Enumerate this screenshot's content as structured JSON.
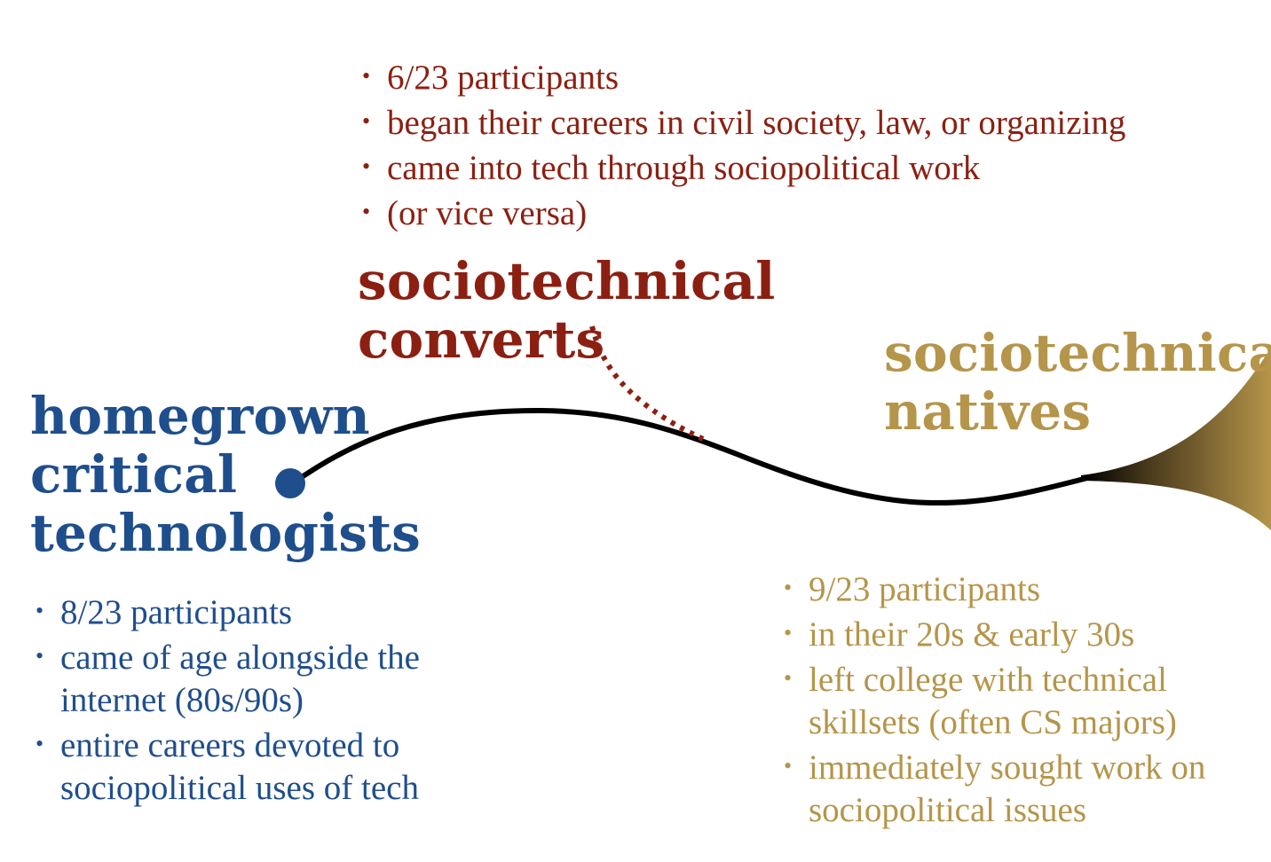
{
  "colors": {
    "homegrown": "#1f4e8c",
    "converts": "#8b2012",
    "natives": "#b5954a",
    "timeline": "#000000"
  },
  "groups": {
    "homegrown": {
      "title_lines": [
        "homegrown",
        "critical",
        "technologists"
      ],
      "bullets": [
        "8/23 participants",
        "came of age alongside the internet (80s/90s)",
        "entire careers devoted to sociopolitical uses of tech"
      ]
    },
    "converts": {
      "title_lines": [
        "sociotechnical",
        "converts"
      ],
      "bullets": [
        "6/23 participants",
        "began their careers in civil society, law, or organizing",
        "came into tech through sociopolitical work",
        "(or vice versa)"
      ]
    },
    "natives": {
      "title_lines": [
        "sociotechnical",
        "natives"
      ],
      "bullets": [
        "9/23 participants",
        "in their 20s & early 30s",
        "left college with technical skillsets (often CS majors)",
        "immediately sought work on sociopolitical issues"
      ]
    }
  },
  "bullet_glyph": "•"
}
